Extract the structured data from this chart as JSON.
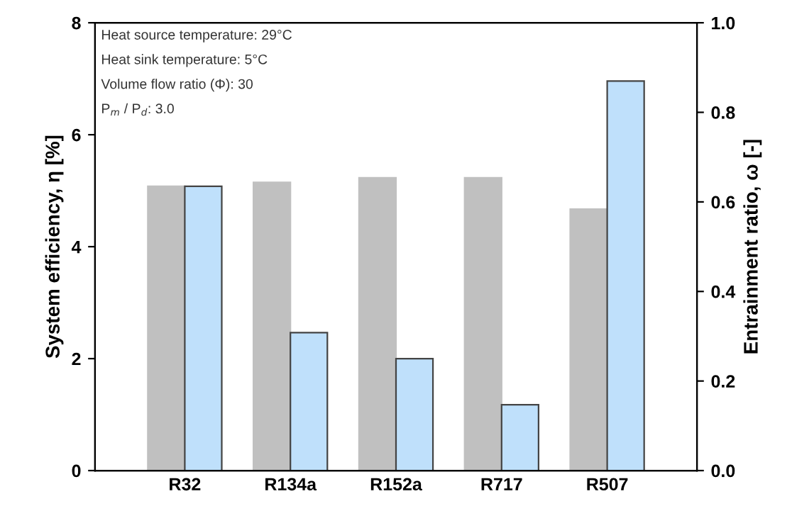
{
  "chart_data": {
    "type": "bar",
    "ylabel": "System efficiency, η [%]",
    "y2label": "Entrainment ratio, ω [-]",
    "categories": [
      "R32",
      "R134a",
      "R152a",
      "R717",
      "R507"
    ],
    "series": [
      {
        "color": "#c0c0c0",
        "values": [
          5.08,
          5.15,
          5.23,
          5.23,
          4.67
        ]
      },
      {
        "color": "#bfe0fb",
        "values": [
          0.635,
          0.308,
          0.25,
          0.147,
          0.87
        ],
        "axis": "y2"
      }
    ],
    "ylim": [
      0,
      8
    ],
    "yticks": [
      0,
      2,
      4,
      6,
      8
    ],
    "y2lim": [
      0,
      1.0
    ],
    "y2ticks": [
      {
        "value": 0,
        "label": "0.0"
      },
      {
        "value": 0.2,
        "label": "0.2"
      },
      {
        "value": 0.4,
        "label": "0.4"
      },
      {
        "value": 0.6,
        "label": "0.6"
      },
      {
        "value": 0.8,
        "label": "0.8"
      },
      {
        "value": 1.0,
        "label": "1.0"
      }
    ],
    "annotations": [
      "Heat source temperature: 29°C",
      "Heat sink temperature: 5°C",
      "Volume flow ratio (Φ): 30",
      "P$_{m}$ / P$_{d}$: 3.0"
    ],
    "grid": false,
    "legend": false
  }
}
